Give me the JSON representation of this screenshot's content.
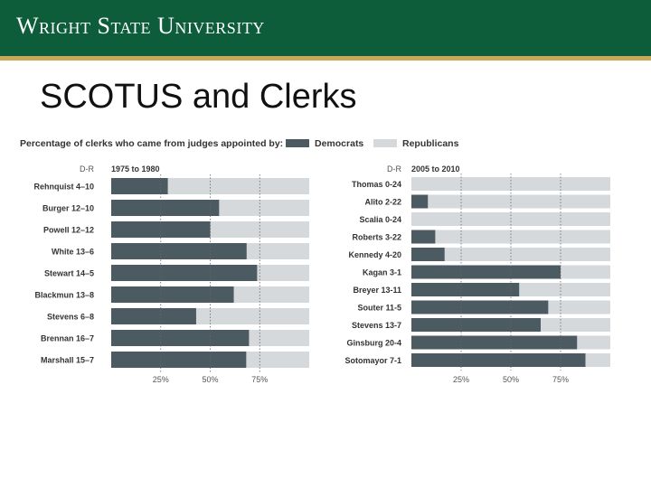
{
  "header": {
    "logo_text": "Wright State University"
  },
  "slide": {
    "title": "SCOTUS and Clerks"
  },
  "colors": {
    "banner": "#0d5c3a",
    "democrats": "#4c5a62",
    "republicans": "#d6d9db"
  },
  "legend": {
    "title": "Percentage of clerks who came from judges appointed by:",
    "items": [
      {
        "label": "Democrats"
      },
      {
        "label": "Republicans"
      }
    ]
  },
  "chart_data": [
    {
      "type": "bar",
      "orientation": "horizontal",
      "stacked": true,
      "column_label": "D-R",
      "title": "1975 to 1980",
      "xlim": [
        0,
        100
      ],
      "x_ticks": [
        "25%",
        "50%",
        "75%"
      ],
      "categories": [
        "Rehnquist 4–10",
        "Burger 12–10",
        "Powell 12–12",
        "White 13–6",
        "Stewart 14–5",
        "Blackmun 13–8",
        "Stevens 6–8",
        "Brennan 16–7",
        "Marshall 15–7"
      ],
      "series": [
        {
          "name": "Democrats",
          "values": [
            28.6,
            54.5,
            50.0,
            68.4,
            73.7,
            61.9,
            42.9,
            69.6,
            68.2
          ]
        },
        {
          "name": "Republicans",
          "values": [
            71.4,
            45.5,
            50.0,
            31.6,
            26.3,
            38.1,
            57.1,
            30.4,
            31.8
          ]
        }
      ]
    },
    {
      "type": "bar",
      "orientation": "horizontal",
      "stacked": true,
      "column_label": "D-R",
      "title": "2005 to 2010",
      "xlim": [
        0,
        100
      ],
      "x_ticks": [
        "25%",
        "50%",
        "75%"
      ],
      "categories": [
        "Thomas 0-24",
        "Alito 2-22",
        "Scalia 0-24",
        "Roberts 3-22",
        "Kennedy 4-20",
        "Kagan 3-1",
        "Breyer 13-11",
        "Souter 11-5",
        "Stevens 13-7",
        "Ginsburg 20-4",
        "Sotomayor 7-1"
      ],
      "series": [
        {
          "name": "Democrats",
          "values": [
            0,
            8.3,
            0,
            12.0,
            16.7,
            75.0,
            54.2,
            68.8,
            65.0,
            83.3,
            87.5
          ]
        },
        {
          "name": "Republicans",
          "values": [
            100,
            91.7,
            100,
            88.0,
            83.3,
            25.0,
            45.8,
            31.2,
            35.0,
            16.7,
            12.5
          ]
        }
      ]
    }
  ]
}
